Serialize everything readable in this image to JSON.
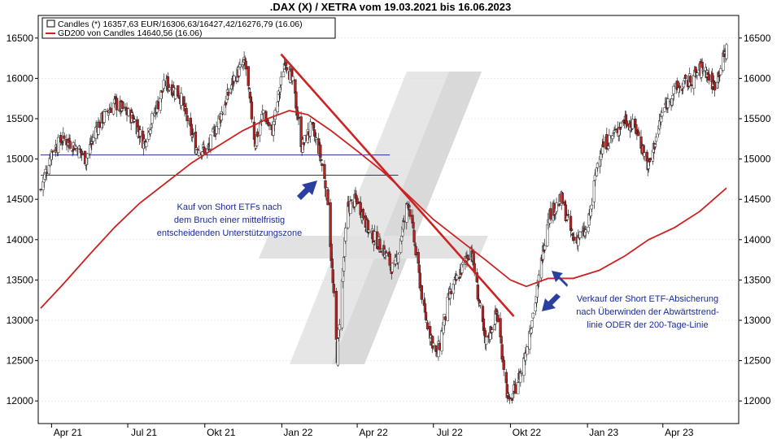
{
  "chart_data": {
    "type": "candlestick",
    "title": ".DAX (X) / XETRA vom 19.03.2021 bis 16.06.2023",
    "legend": [
      {
        "label": "Candles (*) 16357,63 EUR/16306,63/16427,42/16276,79 (16.06)",
        "kind": "candles"
      },
      {
        "label": "GD200 von Candles 14640,56 (16.06)",
        "kind": "line",
        "color": "#cc2222"
      }
    ],
    "ylim": [
      11750,
      16750
    ],
    "yticks": [
      12000,
      12500,
      13000,
      13500,
      14000,
      14500,
      15000,
      15500,
      16000,
      16500
    ],
    "ytick_labels": [
      "12000",
      "12500",
      "13000",
      "13500",
      "14000",
      "14500",
      "15000",
      "15500",
      "16000",
      "16500"
    ],
    "x_range": [
      "2021-03-19",
      "2023-06-16"
    ],
    "xticks": [
      {
        "date": "2021-04-01",
        "label": "Apr 21"
      },
      {
        "date": "2021-07-01",
        "label": "Jul 21"
      },
      {
        "date": "2021-10-01",
        "label": "Okt 21"
      },
      {
        "date": "2022-01-01",
        "label": "Jan 22"
      },
      {
        "date": "2022-04-01",
        "label": "Apr 22"
      },
      {
        "date": "2022-07-01",
        "label": "Jul 22"
      },
      {
        "date": "2022-10-01",
        "label": "Okt 22"
      },
      {
        "date": "2023-01-01",
        "label": "Jan 23"
      },
      {
        "date": "2023-04-01",
        "label": "Apr 23"
      }
    ],
    "close_path": [
      [
        "2021-03-19",
        14620
      ],
      [
        "2021-04-01",
        15100
      ],
      [
        "2021-04-15",
        15250
      ],
      [
        "2021-05-01",
        15150
      ],
      [
        "2021-05-12",
        15000
      ],
      [
        "2021-05-25",
        15400
      ],
      [
        "2021-06-15",
        15700
      ],
      [
        "2021-07-08",
        15500
      ],
      [
        "2021-07-20",
        15200
      ],
      [
        "2021-08-01",
        15550
      ],
      [
        "2021-08-15",
        15950
      ],
      [
        "2021-09-01",
        15800
      ],
      [
        "2021-09-20",
        15150
      ],
      [
        "2021-10-04",
        15100
      ],
      [
        "2021-10-20",
        15550
      ],
      [
        "2021-11-05",
        16000
      ],
      [
        "2021-11-18",
        16200
      ],
      [
        "2021-11-30",
        15200
      ],
      [
        "2021-12-10",
        15600
      ],
      [
        "2021-12-20",
        15300
      ],
      [
        "2022-01-05",
        16250
      ],
      [
        "2022-01-15",
        15900
      ],
      [
        "2022-01-25",
        15150
      ],
      [
        "2022-02-05",
        15400
      ],
      [
        "2022-02-15",
        15100
      ],
      [
        "2022-02-25",
        14500
      ],
      [
        "2022-03-08",
        12550
      ],
      [
        "2022-03-20",
        14400
      ],
      [
        "2022-04-01",
        14500
      ],
      [
        "2022-04-15",
        14100
      ],
      [
        "2022-05-01",
        13900
      ],
      [
        "2022-05-15",
        13600
      ],
      [
        "2022-06-01",
        14500
      ],
      [
        "2022-06-20",
        13100
      ],
      [
        "2022-07-05",
        12550
      ],
      [
        "2022-07-20",
        13300
      ],
      [
        "2022-08-15",
        13900
      ],
      [
        "2022-09-01",
        12700
      ],
      [
        "2022-09-15",
        13100
      ],
      [
        "2022-09-29",
        11950
      ],
      [
        "2022-10-15",
        12400
      ],
      [
        "2022-11-01",
        13300
      ],
      [
        "2022-11-15",
        14300
      ],
      [
        "2022-12-01",
        14500
      ],
      [
        "2022-12-15",
        14000
      ],
      [
        "2023-01-01",
        14100
      ],
      [
        "2023-01-15",
        15100
      ],
      [
        "2023-02-01",
        15300
      ],
      [
        "2023-02-15",
        15500
      ],
      [
        "2023-03-01",
        15350
      ],
      [
        "2023-03-15",
        14900
      ],
      [
        "2023-04-01",
        15600
      ],
      [
        "2023-04-15",
        15850
      ],
      [
        "2023-05-01",
        15950
      ],
      [
        "2023-05-20",
        16150
      ],
      [
        "2023-06-01",
        15900
      ],
      [
        "2023-06-16",
        16357
      ]
    ],
    "gd200": [
      [
        "2021-03-19",
        13150
      ],
      [
        "2021-04-15",
        13450
      ],
      [
        "2021-05-15",
        13800
      ],
      [
        "2021-06-15",
        14150
      ],
      [
        "2021-07-15",
        14450
      ],
      [
        "2021-08-15",
        14700
      ],
      [
        "2021-09-15",
        14950
      ],
      [
        "2021-10-15",
        15150
      ],
      [
        "2021-11-15",
        15350
      ],
      [
        "2021-12-15",
        15500
      ],
      [
        "2022-01-10",
        15600
      ],
      [
        "2022-02-01",
        15550
      ],
      [
        "2022-03-01",
        15350
      ],
      [
        "2022-04-01",
        15100
      ],
      [
        "2022-05-01",
        14850
      ],
      [
        "2022-06-01",
        14550
      ],
      [
        "2022-07-01",
        14250
      ],
      [
        "2022-08-01",
        14000
      ],
      [
        "2022-09-01",
        13750
      ],
      [
        "2022-10-01",
        13500
      ],
      [
        "2022-10-20",
        13420
      ],
      [
        "2022-11-15",
        13520
      ],
      [
        "2022-12-15",
        13520
      ],
      [
        "2023-01-15",
        13620
      ],
      [
        "2023-02-15",
        13800
      ],
      [
        "2023-03-15",
        14000
      ],
      [
        "2023-04-15",
        14150
      ],
      [
        "2023-05-15",
        14350
      ],
      [
        "2023-06-16",
        14640
      ]
    ],
    "support_lines": [
      {
        "y": 15050,
        "from": "2021-03-19",
        "to": "2022-05-10"
      },
      {
        "y": 14800,
        "from": "2021-03-19",
        "to": "2022-05-20"
      }
    ],
    "trend_line": {
      "from": [
        "2021-12-31",
        16300
      ],
      "to": [
        "2022-10-05",
        13050
      ],
      "color": "#cc2222"
    },
    "annotations": [
      {
        "lines": [
          "Kauf von Short ETFs nach",
          "dem Bruch einer mittelfristig",
          "entscheidenden Unterstützungszone"
        ]
      },
      {
        "lines": [
          "Verkauf der Short ETF-Absicherung",
          "nach Überwinden der Abwärtstrend-",
          "linie ODER der 200-Tage-Linie"
        ]
      }
    ],
    "colors": {
      "candle_up": "#ffffff",
      "candle_down": "#bb1f1f",
      "candle_edge": "#222222",
      "gd200": "#cc2222",
      "support": "#223388",
      "arrow": "#2a3fa0",
      "watermark": "#d8d8d8"
    }
  }
}
